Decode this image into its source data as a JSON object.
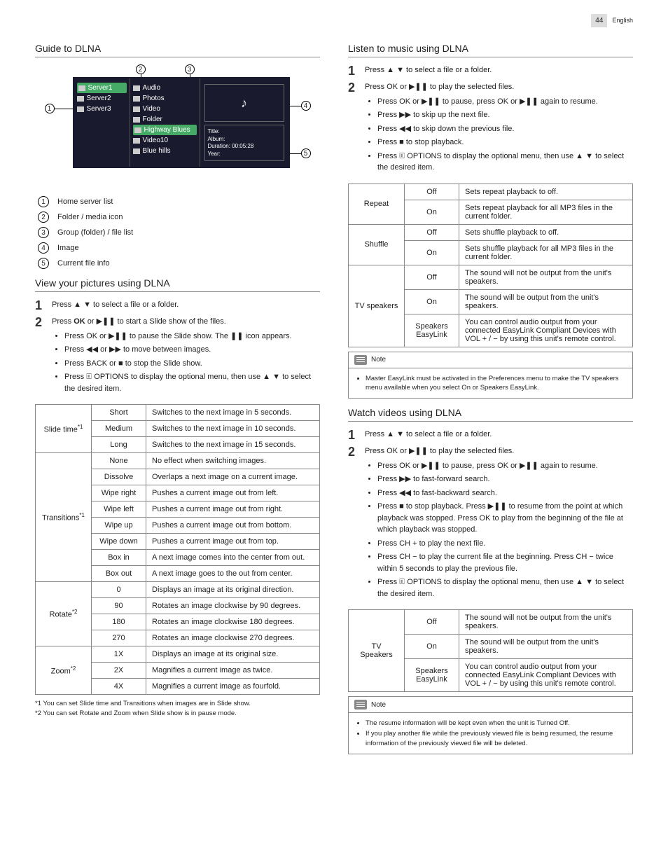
{
  "page": {
    "number": "44",
    "language": "English"
  },
  "left": {
    "guide_title": "Guide to DLNA",
    "diagram": {
      "servers": [
        "Server1",
        "Server2",
        "Server3"
      ],
      "folders": [
        "Audio",
        "Photos",
        "Video",
        "Folder",
        "Highway Blues",
        "Video10",
        "Blue hills"
      ],
      "info": {
        "l1": "Title:",
        "l2": "Album:",
        "l3": "Duration: 00:05:28",
        "l4": "Year:"
      },
      "callouts": {
        "c1": "1",
        "c2": "2",
        "c3": "3",
        "c4": "4",
        "c5": "5"
      }
    },
    "legend": [
      {
        "n": "1",
        "t": "Home server list"
      },
      {
        "n": "2",
        "t": "Folder / media icon"
      },
      {
        "n": "3",
        "t": "Group (folder) / file list"
      },
      {
        "n": "4",
        "t": "Image"
      },
      {
        "n": "5",
        "t": "Current file info"
      }
    ],
    "pictures_title": "View your pictures using DLNA",
    "pic_step1": "Press ▲ ▼ to select a file or a folder.",
    "pic_step2_intro_a": "Press ",
    "pic_step2_intro_b": " or ▶❚❚ to start a Slide show of the files.",
    "pic_bullets": [
      "Press OK or ▶❚❚ to pause the Slide show. The ❚❚ icon appears.",
      "Press ◀◀ or ▶▶ to move between images.",
      "Press BACK or ■ to stop the Slide show.",
      "Press 🗉 OPTIONS to display the optional menu, then use ▲ ▼ to select the desired item."
    ],
    "pic_table": {
      "rows": [
        {
          "g": "Slide time",
          "gs": "*1",
          "span": 3,
          "opt": "Short",
          "desc": "Switches to the next image in 5 seconds."
        },
        {
          "opt": "Medium",
          "desc": "Switches to the next image in 10 seconds."
        },
        {
          "opt": "Long",
          "desc": "Switches to the next image in 15 seconds."
        },
        {
          "g": "Transitions",
          "gs": "*1",
          "span": 8,
          "opt": "None",
          "desc": "No effect when switching images."
        },
        {
          "opt": "Dissolve",
          "desc": "Overlaps a next image on a current image."
        },
        {
          "opt": "Wipe right",
          "desc": "Pushes a current image out from left."
        },
        {
          "opt": "Wipe left",
          "desc": "Pushes a current image out from right."
        },
        {
          "opt": "Wipe up",
          "desc": "Pushes a current image out from bottom."
        },
        {
          "opt": "Wipe down",
          "desc": "Pushes a current image out from top."
        },
        {
          "opt": "Box in",
          "desc": "A next image comes into the center from out."
        },
        {
          "opt": "Box out",
          "desc": "A next image goes to the out from center."
        },
        {
          "g": "Rotate",
          "gs": "*2",
          "span": 4,
          "opt": "0",
          "desc": "Displays an image at its original direction."
        },
        {
          "opt": "90",
          "desc": "Rotates an image clockwise by 90 degrees."
        },
        {
          "opt": "180",
          "desc": "Rotates an image clockwise 180 degrees."
        },
        {
          "opt": "270",
          "desc": "Rotates an image clockwise 270 degrees."
        },
        {
          "g": "Zoom",
          "gs": "*2",
          "span": 3,
          "opt": "1X",
          "desc": "Displays an image at its original size."
        },
        {
          "opt": "2X",
          "desc": "Magnifies a current image as twice."
        },
        {
          "opt": "4X",
          "desc": "Magnifies a current image as fourfold."
        }
      ]
    },
    "footnotes": [
      "*1 You can set Slide time and Transitions when images are in Slide show.",
      "*2 You can set Rotate and Zoom when Slide show is in pause mode."
    ]
  },
  "right": {
    "music_title": "Listen to music using DLNA",
    "mus_step1": "Press ▲ ▼ to select a file or a folder.",
    "mus_step2_intro": "Press OK or ▶❚❚ to play the selected files.",
    "mus_bullets": [
      "Press OK or ▶❚❚ to pause, press OK or ▶❚❚ again to resume.",
      "Press ▶▶ to skip up the next file.",
      "Press ◀◀ to skip down the previous file.",
      "Press ■ to stop playback.",
      "Press 🗉 OPTIONS to display the optional menu, then use ▲ ▼ to select the desired item."
    ],
    "mus_table": {
      "rows": [
        {
          "g": "Repeat",
          "span": 2,
          "opt": "Off",
          "desc": "Sets repeat playback to off."
        },
        {
          "opt": "On",
          "desc": "Sets repeat playback for all MP3 files in the current folder."
        },
        {
          "g": "Shuffle",
          "span": 2,
          "opt": "Off",
          "desc": "Sets shuffle playback to off."
        },
        {
          "opt": "On",
          "desc": "Sets shuffle playback for all MP3 files in the current folder."
        },
        {
          "g": "TV speakers",
          "span": 3,
          "opt": "Off",
          "desc": "The sound will not be output from the unit's speakers."
        },
        {
          "opt": "On",
          "desc": "The sound will be output from the unit's speakers."
        },
        {
          "opt": "Speakers EasyLink",
          "desc": "You can control audio output from your connected EasyLink Compliant Devices with VOL + / − by using this unit's remote control."
        }
      ]
    },
    "mus_note_label": "Note",
    "mus_note": "Master EasyLink must be activated in the Preferences menu to make the TV speakers menu available when you select On or Speakers EasyLink.",
    "video_title": "Watch videos using DLNA",
    "vid_step1": "Press ▲ ▼ to select a file or a folder.",
    "vid_step2_intro": "Press OK or ▶❚❚ to play the selected files.",
    "vid_bullets": [
      "Press OK or ▶❚❚ to pause, press OK or ▶❚❚ again to resume.",
      "Press ▶▶ to fast-forward search.",
      "Press ◀◀ to fast-backward search.",
      "Press ■ to stop playback. Press ▶❚❚ to resume from the point at which playback was stopped. Press OK to play from the beginning of the file at which playback was stopped.",
      "Press CH + to play the next file.",
      "Press CH − to play the current file at the beginning. Press CH − twice within 5 seconds to play the previous file.",
      "Press 🗉 OPTIONS to display the optional menu, then use ▲ ▼ to select the desired item."
    ],
    "vid_table": {
      "rows": [
        {
          "g": "TV Speakers",
          "span": 3,
          "opt": "Off",
          "desc": "The sound will not be output from the unit's speakers."
        },
        {
          "opt": "On",
          "desc": "The sound will be output from the unit's speakers."
        },
        {
          "opt": "Speakers EasyLink",
          "desc": "You can control audio output from your connected EasyLink Compliant Devices with VOL + / − by using this unit's remote control."
        }
      ]
    },
    "vid_note_label": "Note",
    "vid_notes": [
      "The resume information will be kept even when the unit is Turned Off.",
      "If you play another file while the previously viewed file is being resumed, the resume information of the previously viewed file will be deleted."
    ]
  }
}
